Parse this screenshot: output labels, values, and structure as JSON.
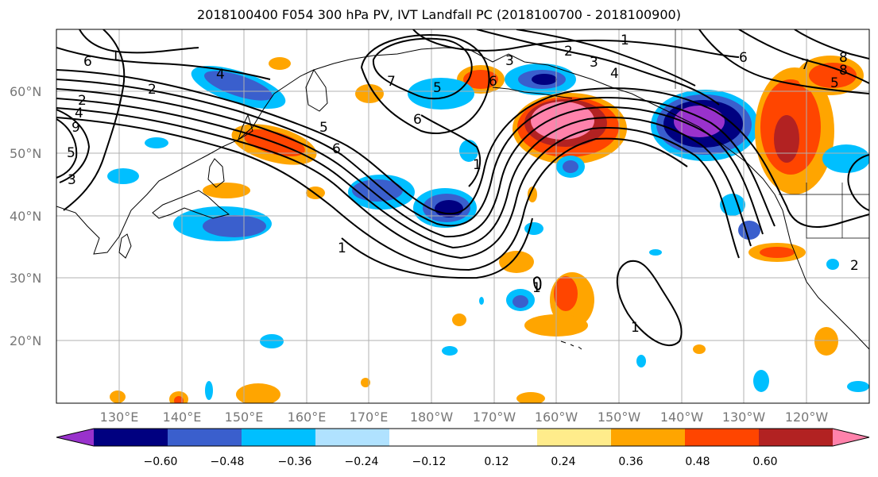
{
  "title": "2018100400 F054 300 hPa PV, IVT Landfall PC (2018100700 - 2018100900)",
  "lat_labels": [
    "60°N",
    "50°N",
    "40°N",
    "30°N",
    "20°N"
  ],
  "lon_labels": [
    "130°E",
    "140°E",
    "150°E",
    "160°E",
    "170°E",
    "180°W",
    "170°W",
    "160°W",
    "150°W",
    "140°W",
    "130°W",
    "120°W"
  ],
  "colorbar": {
    "colors": [
      "#9932cc",
      "#000080",
      "#3a5fcd",
      "#00bfff",
      "#b0e2ff",
      "#ffffff",
      "#ffffff",
      "#ffec8b",
      "#ffa500",
      "#ff4500",
      "#b22222",
      "#ff82ab"
    ],
    "tick_labels": [
      "−0.60",
      "−0.48",
      "−0.36",
      "−0.24",
      "−0.12",
      "0.12",
      "0.24",
      "0.36",
      "0.48",
      "0.60"
    ]
  },
  "contour_labels": [
    "1",
    "2",
    "3",
    "4",
    "5",
    "6",
    "7",
    "8",
    "9",
    "1",
    "1",
    "1",
    "1",
    "2",
    "3",
    "4",
    "5",
    "6",
    "5",
    "6",
    "6",
    "4",
    "3",
    "2",
    "5",
    "6",
    "7",
    "8",
    "1",
    "2"
  ]
}
